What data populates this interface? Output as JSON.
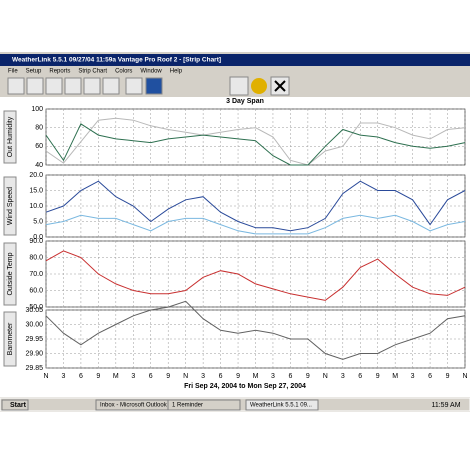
{
  "window": {
    "title": "WeatherLink 5.5.1  09/27/04  11:59a  Vantage Pro Roof 2 - [Strip Chart]",
    "menu": [
      "File",
      "Setup",
      "Reports",
      "Strip Chart",
      "Colors",
      "Window",
      "Help"
    ]
  },
  "chart_header": {
    "title": "3 Day Span",
    "range": "Fri Sep 24, 2004  to  Mon Sep 27, 2004"
  },
  "chart_data": [
    {
      "type": "line",
      "ylabel": "Out Humidity",
      "x": [
        0,
        3,
        6,
        9,
        12,
        15,
        18,
        21,
        24,
        27,
        30,
        33,
        36,
        39,
        42,
        45,
        48,
        51,
        54,
        57,
        60,
        63,
        66,
        69,
        72
      ],
      "xlim": [
        0,
        72
      ],
      "ylim": [
        40,
        100
      ],
      "yticks": [
        40,
        60,
        80,
        100
      ],
      "grid": true,
      "series": [
        {
          "color": "#b8b8b8",
          "values": [
            55,
            42,
            65,
            88,
            90,
            88,
            82,
            78,
            75,
            72,
            75,
            78,
            80,
            70,
            45,
            40,
            55,
            60,
            85,
            85,
            80,
            72,
            68,
            78,
            80
          ]
        },
        {
          "color": "#2e7050",
          "values": [
            72,
            45,
            84,
            72,
            68,
            66,
            64,
            68,
            70,
            72,
            70,
            68,
            66,
            50,
            40,
            40,
            60,
            78,
            72,
            70,
            64,
            60,
            58,
            60,
            64
          ]
        }
      ]
    },
    {
      "type": "line",
      "ylabel": "Wind Speed",
      "x": [
        0,
        3,
        6,
        9,
        12,
        15,
        18,
        21,
        24,
        27,
        30,
        33,
        36,
        39,
        42,
        45,
        48,
        51,
        54,
        57,
        60,
        63,
        66,
        69,
        72
      ],
      "xlim": [
        0,
        72
      ],
      "ylim": [
        0,
        20
      ],
      "yticks": [
        {
          "value": 0,
          "label": "0.0"
        },
        {
          "value": 5,
          "label": "5.0"
        },
        {
          "value": 10,
          "label": "10.0"
        },
        {
          "value": 15,
          "label": "15.0"
        },
        {
          "value": 20,
          "label": "20.0"
        }
      ],
      "grid": true,
      "series": [
        {
          "color": "#7ab8e0",
          "values": [
            4,
            5,
            7,
            6,
            6,
            4,
            2,
            5,
            6,
            6,
            4,
            2,
            1,
            1,
            1,
            1,
            3,
            6,
            7,
            6,
            7,
            5,
            2,
            4,
            5
          ]
        },
        {
          "color": "#2a4a9a",
          "values": [
            8,
            10,
            15,
            18,
            13,
            10,
            5,
            9,
            12,
            13,
            8,
            5,
            3,
            3,
            2,
            3,
            6,
            14,
            18,
            15,
            15,
            12,
            4,
            12,
            15
          ]
        }
      ]
    },
    {
      "type": "line",
      "ylabel": "Outside Temp",
      "x": [
        0,
        3,
        6,
        9,
        12,
        15,
        18,
        21,
        24,
        27,
        30,
        33,
        36,
        39,
        42,
        45,
        48,
        51,
        54,
        57,
        60,
        63,
        66,
        69,
        72
      ],
      "xlim": [
        0,
        72
      ],
      "ylim": [
        50,
        90
      ],
      "yticks": [
        {
          "value": 50,
          "label": "50.0"
        },
        {
          "value": 60,
          "label": "60.0"
        },
        {
          "value": 70,
          "label": "70.0"
        },
        {
          "value": 80,
          "label": "80.0"
        },
        {
          "value": 90,
          "label": "90.0"
        }
      ],
      "grid": true,
      "series": [
        {
          "color": "#c83030",
          "values": [
            78,
            84,
            80,
            70,
            64,
            60,
            58,
            58,
            60,
            68,
            72,
            70,
            64,
            61,
            58,
            56,
            54,
            62,
            74,
            79,
            70,
            62,
            58,
            57,
            62
          ]
        }
      ]
    },
    {
      "type": "line",
      "ylabel": "Barometer",
      "x": [
        0,
        3,
        6,
        9,
        12,
        15,
        18,
        21,
        24,
        27,
        30,
        33,
        36,
        39,
        42,
        45,
        48,
        51,
        54,
        57,
        60,
        63,
        66,
        69,
        72
      ],
      "xlim": [
        0,
        72
      ],
      "ylim": [
        29.85,
        30.05
      ],
      "yticks": [
        29.85,
        {
          "value": 29.9,
          "label": "29.90"
        },
        29.95,
        {
          "value": 30,
          "label": "30.00"
        },
        30.05
      ],
      "grid": true,
      "xticks": [
        {
          "value": 0,
          "label": "N"
        },
        3,
        6,
        9,
        {
          "value": 12,
          "label": "M"
        },
        {
          "value": 15,
          "label": "3"
        },
        {
          "value": 18,
          "label": "6"
        },
        {
          "value": 21,
          "label": "9"
        },
        {
          "value": 24,
          "label": "N"
        },
        {
          "value": 27,
          "label": "3"
        },
        {
          "value": 30,
          "label": "6"
        },
        {
          "value": 33,
          "label": "9"
        },
        {
          "value": 36,
          "label": "M"
        },
        {
          "value": 39,
          "label": "3"
        },
        {
          "value": 42,
          "label": "6"
        },
        {
          "value": 45,
          "label": "9"
        },
        {
          "value": 48,
          "label": "N"
        },
        {
          "value": 51,
          "label": "3"
        },
        {
          "value": 54,
          "label": "6"
        },
        {
          "value": 57,
          "label": "9"
        },
        {
          "value": 60,
          "label": "M"
        },
        {
          "value": 63,
          "label": "3"
        },
        {
          "value": 66,
          "label": "6"
        },
        {
          "value": 69,
          "label": "9"
        },
        {
          "value": 72,
          "label": "N"
        }
      ],
      "series": [
        {
          "color": "#606060",
          "values": [
            30.03,
            29.97,
            29.93,
            29.97,
            30.0,
            30.03,
            30.05,
            30.06,
            30.08,
            30.02,
            29.98,
            29.97,
            29.98,
            29.97,
            29.95,
            29.95,
            29.9,
            29.88,
            29.9,
            29.9,
            29.93,
            29.95,
            29.97,
            30.02,
            30.03
          ]
        }
      ]
    }
  ],
  "taskbar": {
    "start": "Start",
    "items": [
      "Inbox - Microsoft Outlook",
      "1 Reminder",
      "WeatherLink 5.5.1  09..."
    ],
    "clock": "11:59 AM"
  }
}
